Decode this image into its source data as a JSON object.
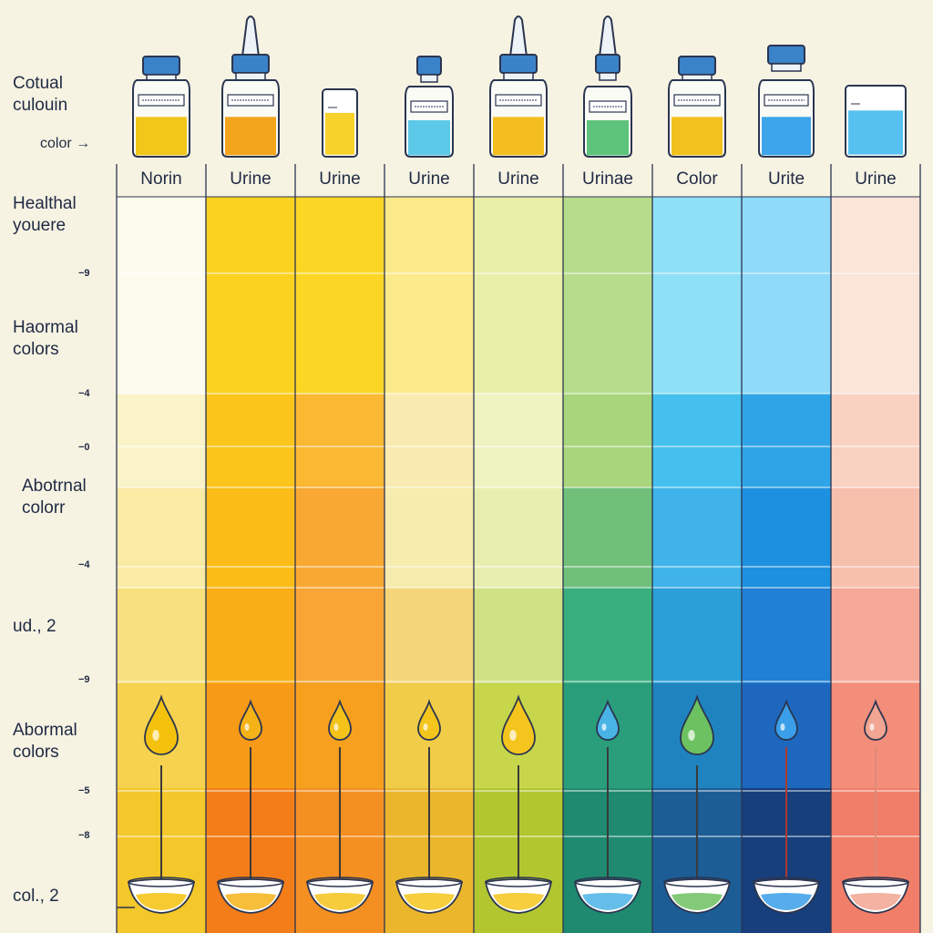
{
  "side_labels": [
    {
      "lines": [
        "Cotual",
        "culouin"
      ]
    },
    {
      "lines": [
        "color →"
      ]
    },
    {
      "lines": [
        "Healthal",
        "youere"
      ]
    },
    {
      "lines": [
        "Haormal",
        "colors"
      ]
    },
    {
      "lines": [
        "Abotrnal",
        "colorr"
      ]
    },
    {
      "lines": [
        "ud., 2"
      ]
    },
    {
      "lines": [
        "Abormal",
        "colors"
      ]
    },
    {
      "lines": [
        "col., 2"
      ]
    }
  ],
  "tick_labels": [
    "−9",
    "−4",
    "−0",
    "−4",
    "−9",
    "−5",
    "−8"
  ],
  "columns": [
    {
      "header": "Norin",
      "vessel": "bottle",
      "fluid": "#f3c61a",
      "drop": "#f4c20d",
      "stem": "#3a3a3a",
      "bands": [
        "#fdfbee",
        "#faf3c8",
        "#f9eaa4",
        "#f8e07e",
        "#f6d24e",
        "#f4c72a"
      ]
    },
    {
      "header": "Urine",
      "vessel": "dropper",
      "fluid": "#f2a51d",
      "drop": "#f5b318",
      "stem": "#3a3a3a",
      "bands": [
        "#fbd21f",
        "#fbc51b",
        "#fbbc17",
        "#f9ad16",
        "#f79a18",
        "#f37d18"
      ]
    },
    {
      "header": "Urine",
      "vessel": "cup",
      "fluid": "#f7d22a",
      "drop": "#f5c21a",
      "stem": "#3a3a3a",
      "bands": [
        "#fbd625",
        "#fbb832",
        "#f9a833",
        "#f8a536",
        "#f6a01e",
        "#f48f22"
      ]
    },
    {
      "header": "Urine",
      "vessel": "bottle-small",
      "fluid": "#5cc9e8",
      "drop": "#f4c51c",
      "stem": "#3a3a3a",
      "bands": [
        "#fbea8a",
        "#f9ebb0",
        "#f6ecae",
        "#f5d57a",
        "#f0cc48",
        "#ecb62c"
      ]
    },
    {
      "header": "Urine",
      "vessel": "dropper",
      "fluid": "#f4be1f",
      "drop": "#f4c51c",
      "stem": "#3a3a3a",
      "bands": [
        "#e9efa8",
        "#eff3c2",
        "#e7eeb0",
        "#cfe184",
        "#c7d64a",
        "#b2c630"
      ]
    },
    {
      "header": "Urinae",
      "vessel": "dropper-thin",
      "fluid": "#5ec47c",
      "drop": "#4ab3e6",
      "stem": "#3a3a3a",
      "bands": [
        "#b7dc8c",
        "#a9d57c",
        "#70c07a",
        "#39ae7e",
        "#2a9e7a",
        "#1f8a70"
      ]
    },
    {
      "header": "Color",
      "vessel": "bottle",
      "fluid": "#f2c11d",
      "drop": "#6cc160",
      "stem": "#3a3a3a",
      "bands": [
        "#8ee0f7",
        "#45c0ee",
        "#3fb3ea",
        "#2a9fd8",
        "#1f83c0",
        "#1c5d96"
      ]
    },
    {
      "header": "Urite",
      "vessel": "bottle-tall",
      "fluid": "#3da5ea",
      "drop": "#3a9fe8",
      "stem": "#b0382f",
      "bands": [
        "#8fdaf8",
        "#2fa5e8",
        "#1e90e0",
        "#1f80d6",
        "#1d68be",
        "#163f7c"
      ]
    },
    {
      "header": "Urine",
      "vessel": "cup-wide",
      "fluid": "#56c0ee",
      "drop": "#f1a592",
      "stem": "#e08a78",
      "bands": [
        "#fbe4d8",
        "#f9d2c1",
        "#f7c0ad",
        "#f5a897",
        "#f38e7a",
        "#f07e68"
      ]
    }
  ]
}
